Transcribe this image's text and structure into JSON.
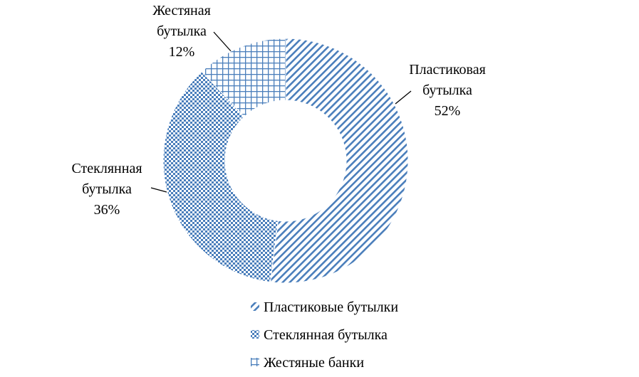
{
  "chart_data": {
    "type": "donut",
    "categories": [
      "Пластиковые бутылки",
      "Стеклянная бутылка",
      "Жестяные банки"
    ],
    "values": [
      52,
      36,
      12
    ],
    "value_labels": [
      "52%",
      "36%",
      "12%"
    ],
    "label_names": [
      [
        "Пластиковая",
        "бутылка"
      ],
      [
        "Стеклянная",
        "бутылка"
      ],
      [
        "Жестяная",
        "бутылка"
      ]
    ],
    "color": "#4a7ebb",
    "patterns": [
      "diagonal",
      "checker",
      "grid"
    ],
    "legend": "bottom"
  }
}
